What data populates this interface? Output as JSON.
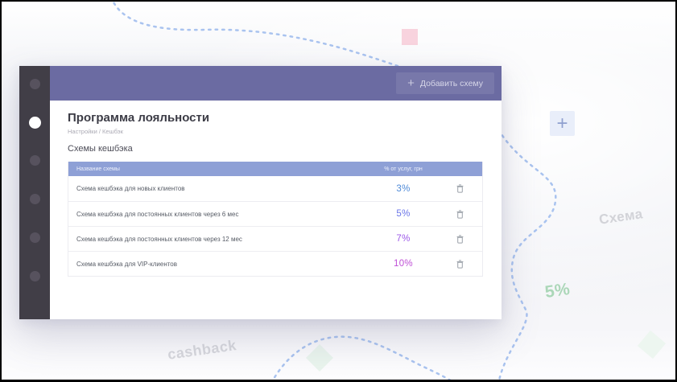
{
  "decor": {
    "schema_label": "Схема",
    "percent_label": "5%",
    "cashback_label": "cashback",
    "plus_glyph": "+",
    "colors": {
      "pink_square": "#f8d3de",
      "plus_tile_bg": "#e9eefa",
      "dotted_line": "#a9c3ef",
      "schema_text": "#d2d3d8",
      "percent_text": "#abd7b8",
      "cashback_text": "#d6d7dc"
    }
  },
  "window": {
    "header": {
      "bg": "#6b6ba2",
      "add_button": {
        "icon": "+",
        "label": "Добавить схему"
      }
    },
    "sidebar": {
      "dot_count": 6,
      "active_index": 1
    },
    "page": {
      "title": "Программа лояльности",
      "breadcrumb": "Настройки / Кешбэк",
      "section_title": "Схемы кешбэка"
    },
    "table": {
      "header_bg": "#8ea0d6",
      "columns": [
        "Название схемы",
        "% от услуг, грн"
      ],
      "rows": [
        {
          "name": "Схема кешбэка для новых клиентов",
          "percent": "3%",
          "color": "#4e8ad8"
        },
        {
          "name": "Схема кешбэка для постоянных клиентов через 6 мес",
          "percent": "5%",
          "color": "#6a75e8"
        },
        {
          "name": "Схема кешбэка для постоянных клиентов через 12 мес",
          "percent": "7%",
          "color": "#9c59e8"
        },
        {
          "name": "Схема кешбэка для VIP-клиентов",
          "percent": "10%",
          "color": "#bf4fd6"
        }
      ]
    }
  }
}
